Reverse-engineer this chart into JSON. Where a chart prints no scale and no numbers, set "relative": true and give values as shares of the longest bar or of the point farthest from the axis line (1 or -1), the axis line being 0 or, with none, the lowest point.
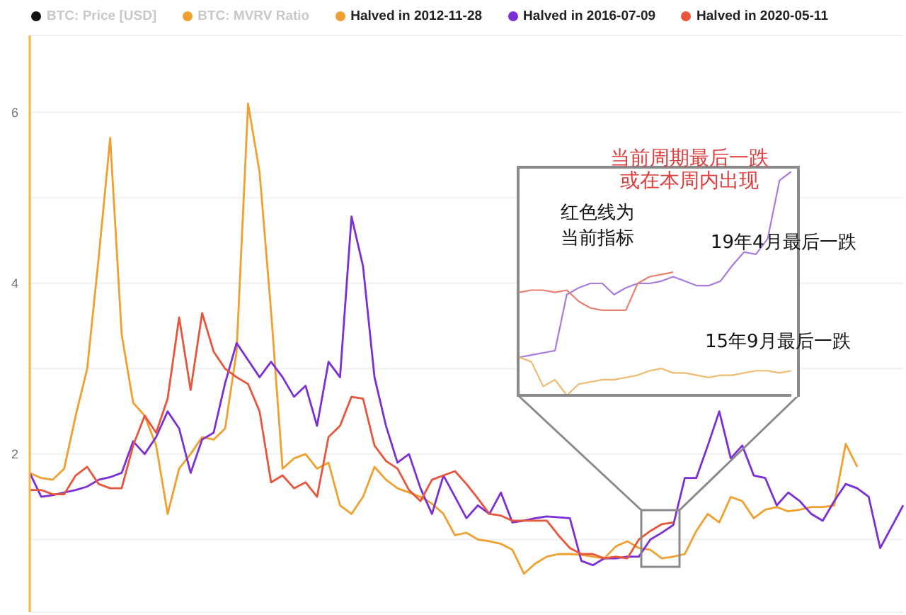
{
  "chart_data": [
    {
      "type": "line",
      "categories": [
        null,
        null,
        null,
        null,
        null,
        null,
        null,
        null,
        null,
        null,
        null,
        null,
        null,
        null,
        null,
        null,
        null,
        null,
        null,
        null,
        null,
        null,
        null,
        null,
        null,
        null,
        null,
        null,
        null,
        null,
        null,
        null,
        null,
        null,
        null,
        null,
        null,
        null,
        null,
        null,
        null,
        null,
        null,
        null,
        null,
        null,
        null,
        null,
        null,
        null,
        null,
        null,
        null,
        null,
        null,
        null,
        null,
        null,
        null,
        null,
        null,
        null,
        null,
        null,
        null,
        null,
        null,
        null,
        null,
        null,
        null,
        null,
        null,
        null,
        null,
        null,
        null
      ],
      "series": [
        {
          "name": "BTC: Price [USD]",
          "color": "#111111",
          "values": [
            null,
            null,
            null,
            null,
            null,
            null,
            null,
            null,
            null,
            null,
            null,
            null,
            null,
            null,
            null,
            null,
            null,
            null,
            null,
            null,
            null,
            null,
            null,
            null,
            null,
            null,
            null,
            null,
            null,
            null,
            null,
            null,
            null,
            null,
            null,
            null,
            null,
            null,
            null,
            null,
            null,
            null,
            null,
            null,
            null,
            null,
            null,
            null,
            null,
            null,
            null,
            null,
            null,
            null,
            null,
            null,
            null,
            null,
            null,
            null,
            null,
            null,
            null,
            null,
            null,
            null,
            null,
            null,
            null,
            null,
            null,
            null,
            null,
            null,
            null,
            null,
            null
          ]
        },
        {
          "name": "BTC: MVRV Ratio",
          "color": "#f0a030",
          "values": [
            null,
            null,
            null,
            null,
            null,
            null,
            null,
            null,
            null,
            null,
            null,
            null,
            null,
            null,
            null,
            null,
            null,
            null,
            null,
            null,
            null,
            null,
            null,
            null,
            null,
            null,
            null,
            null,
            null,
            null,
            null,
            null,
            null,
            null,
            null,
            null,
            null,
            null,
            null,
            null,
            null,
            null,
            null,
            null,
            null,
            null,
            null,
            null,
            null,
            null,
            null,
            null,
            null,
            null,
            null,
            null,
            null,
            null,
            null,
            null,
            null,
            null,
            null,
            null,
            null,
            null,
            null,
            null,
            null,
            null,
            null,
            null,
            null,
            null,
            null,
            null,
            null
          ]
        },
        {
          "name": "Halved in 2012-11-28",
          "color": "#f0a030",
          "values": [
            1.78,
            1.72,
            1.7,
            1.83,
            2.45,
            3.0,
            4.3,
            5.7,
            3.4,
            2.6,
            2.45,
            2.1,
            1.3,
            1.83,
            2.0,
            2.2,
            2.17,
            2.3,
            3.2,
            6.1,
            5.3,
            3.67,
            1.83,
            1.95,
            2.0,
            1.83,
            1.9,
            1.4,
            1.3,
            1.5,
            1.85,
            1.7,
            1.6,
            1.55,
            1.5,
            1.42,
            1.3,
            1.05,
            1.08,
            1.0,
            0.98,
            0.95,
            0.88,
            0.6,
            0.72,
            0.8,
            0.83,
            0.83,
            0.82,
            0.8,
            0.78,
            0.92,
            0.98,
            0.9,
            0.88,
            0.78,
            0.8,
            0.83,
            1.1,
            1.3,
            1.2,
            1.5,
            1.45,
            1.25,
            1.35,
            1.38,
            1.33,
            1.35,
            1.38,
            1.38,
            1.4,
            2.12,
            1.85,
            null,
            null,
            null,
            null
          ]
        },
        {
          "name": "Halved in 2016-07-09",
          "color": "#7b2fd6",
          "values": [
            1.78,
            1.5,
            1.52,
            1.55,
            1.58,
            1.62,
            1.7,
            1.73,
            1.78,
            2.15,
            2.0,
            2.2,
            2.5,
            2.3,
            1.78,
            2.17,
            2.25,
            2.83,
            3.3,
            3.1,
            2.9,
            3.08,
            2.9,
            2.67,
            2.8,
            2.33,
            3.08,
            2.9,
            4.78,
            4.2,
            2.9,
            2.33,
            1.9,
            2.0,
            1.6,
            1.3,
            1.75,
            1.5,
            1.25,
            1.4,
            1.3,
            1.55,
            1.2,
            1.22,
            1.25,
            1.27,
            1.26,
            1.25,
            0.75,
            0.7,
            0.78,
            0.78,
            0.8,
            0.8,
            1.0,
            1.08,
            1.17,
            1.72,
            1.72,
            2.1,
            2.5,
            1.95,
            2.1,
            1.75,
            1.72,
            1.4,
            1.55,
            1.45,
            1.3,
            1.22,
            1.45,
            1.65,
            1.6,
            1.5,
            0.9,
            1.15,
            1.4
          ]
        },
        {
          "name": "Halved in 2020-05-11",
          "color": "#e8553a",
          "values": [
            1.58,
            1.58,
            1.53,
            1.53,
            1.75,
            1.85,
            1.65,
            1.6,
            1.6,
            2.1,
            2.45,
            2.25,
            2.65,
            3.6,
            2.75,
            3.65,
            3.2,
            3.0,
            2.9,
            2.82,
            2.5,
            1.67,
            1.75,
            1.6,
            1.67,
            1.5,
            2.2,
            2.33,
            2.67,
            2.65,
            2.1,
            1.92,
            1.83,
            1.58,
            1.45,
            1.7,
            1.75,
            1.8,
            1.65,
            1.48,
            1.3,
            1.28,
            1.22,
            1.22,
            1.22,
            1.22,
            1.05,
            0.9,
            0.83,
            0.83,
            0.78,
            0.8,
            0.78,
            1.0,
            1.1,
            1.18,
            1.2,
            null,
            null,
            null,
            null,
            null,
            null,
            null,
            null,
            null,
            null,
            null,
            null,
            null,
            null,
            null,
            null,
            null,
            null,
            null,
            null
          ]
        }
      ],
      "ylim": [
        0.15,
        6.9
      ],
      "yticks": [
        {
          "value": 1,
          "label": null
        },
        2,
        {
          "value": 3,
          "label": null
        },
        4,
        {
          "value": 5,
          "label": null
        },
        6
      ],
      "tick_labels": "y",
      "grid": "y",
      "legend": "top"
    },
    {
      "type": "line",
      "relative": true,
      "categories": [
        null,
        null,
        null,
        null,
        null,
        null,
        null,
        null,
        null,
        null,
        null,
        null,
        null,
        null,
        null,
        null,
        null,
        null,
        null,
        null,
        null,
        null,
        null,
        null
      ],
      "series": [
        {
          "color": "#a77be0",
          "values": [
            0.17,
            0.18,
            0.19,
            0.2,
            0.45,
            0.48,
            0.5,
            0.5,
            0.45,
            0.48,
            0.5,
            0.5,
            0.51,
            0.53,
            0.51,
            0.49,
            0.49,
            0.51,
            0.58,
            0.64,
            0.63,
            0.7,
            0.96,
            1
          ]
        },
        {
          "color": "#e88070",
          "values": [
            0.46,
            0.47,
            0.47,
            0.46,
            0.47,
            0.42,
            0.39,
            0.38,
            0.38,
            0.38,
            0.5,
            0.53,
            0.54,
            0.55,
            null,
            null,
            null,
            null,
            null,
            null,
            null,
            null,
            null,
            null
          ]
        },
        {
          "color": "#eebb70",
          "values": [
            0.17,
            0.15,
            0.04,
            0.07,
            0,
            0.05,
            0.06,
            0.07,
            0.07,
            0.08,
            0.09,
            0.11,
            0.12,
            0.1,
            0.1,
            0.09,
            0.08,
            0.09,
            0.09,
            0.1,
            0.11,
            0.11,
            0.1,
            0.11
          ]
        }
      ],
      "annotations": [
        "当前周期最后一跌或在本周内出现",
        "红色线为当前指标",
        "19年4月最后一跌",
        "15年9月最后一跌"
      ]
    }
  ]
}
